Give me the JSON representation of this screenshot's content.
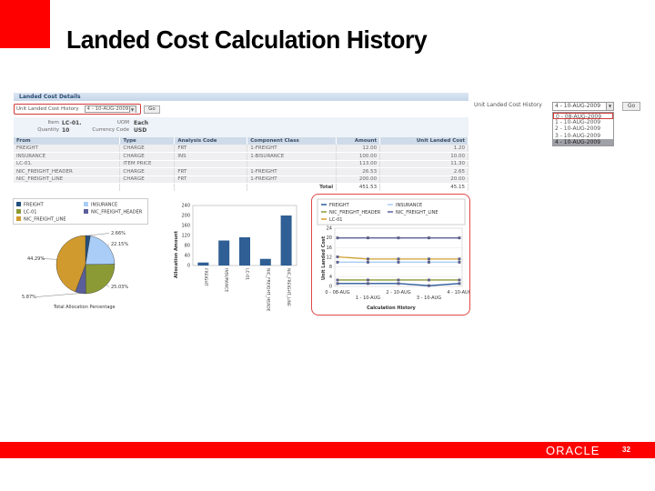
{
  "slide": {
    "title": "Landed Cost Calculation History",
    "brand": "ORACLE",
    "page_number": "32",
    "accent_color": "#ff0000"
  },
  "panel": {
    "header": "Landed Cost Details",
    "history_label": "Unit Landed Cost History",
    "history_value": "4 - 10-AUG-2009",
    "go_label": "Go",
    "item_label": "Item",
    "item_value": "LC-01.",
    "quantity_label": "Quantity",
    "quantity_value": "10",
    "uom_label": "UOM",
    "uom_value": "Each",
    "currency_label": "Currency Code",
    "currency_value": "USD"
  },
  "table": {
    "columns": [
      "From",
      "Type",
      "Analysis Code",
      "Component Class",
      "Amount",
      "Unit Landed Cost"
    ],
    "rows": [
      [
        "FREIGHT",
        "CHARGE",
        "FRT",
        "1-FREIGHT",
        "12.00",
        "1.20"
      ],
      [
        "INSURANCE",
        "CHARGE",
        "INS",
        "1-BISURANCE",
        "100.00",
        "10.00"
      ],
      [
        "LC-01.",
        "ITEM PRICE",
        "",
        "",
        "113.00",
        "11.30"
      ],
      [
        "NIC_FREIGHT_HEADER",
        "CHARGE",
        "FRT",
        "1-FREIGHT",
        "26.53",
        "2.65"
      ],
      [
        "NIC_FREIGHT_LINE",
        "CHARGE",
        "FRT",
        "1-FREIGHT",
        "200.00",
        "20.00"
      ]
    ],
    "total_label": "Total",
    "total_amount": "451.53",
    "total_unit": "45.15"
  },
  "dropdown": {
    "label": "Unit Landed Cost History",
    "value": "4 - 10-AUG-2009",
    "go_label": "Go",
    "options": [
      "0 - 08-AUG-2009",
      "1 - 10-AUG-2009",
      "2 - 10-AUG-2009",
      "3 - 10-AUG-2009",
      "4 - 10-AUG-2009"
    ]
  },
  "chart_data": [
    {
      "type": "pie",
      "title": "Total Allocation Percentage",
      "categories": [
        "FREIGHT",
        "INSURANCE",
        "LC-01",
        "NIC_FREIGHT_HEADER",
        "NIC_FREIGHT_LINE"
      ],
      "values": [
        2.66,
        22.15,
        25.03,
        5.87,
        44.29
      ],
      "labels": [
        "2.66%",
        "22.15%",
        "25.03%",
        "5.87%",
        "44.29%"
      ],
      "colors": [
        "#24507f",
        "#a9cdf7",
        "#8c9a36",
        "#5a5e9a",
        "#d09a2e"
      ],
      "legend_position": "top"
    },
    {
      "type": "bar",
      "title": "",
      "categories": [
        "FREIGHT",
        "INSURANCE",
        "LC-01",
        "NIC_FREIGHT_HEADER",
        "NIC_FREIGHT_LINE"
      ],
      "values": [
        12,
        100,
        113,
        26.53,
        200
      ],
      "xlabel": "",
      "ylabel": "Allocation Amount",
      "ylim": [
        0,
        240
      ],
      "yticks": [
        0,
        40,
        80,
        120,
        160,
        200,
        240
      ],
      "color": "#2f5f94"
    },
    {
      "type": "line",
      "title": "",
      "xlabel": "Calculation History",
      "ylabel": "Unit Landed Cost",
      "categories": [
        "0 - 08-AUG",
        "1 - 10-AUG",
        "2 - 10-AUG",
        "3 - 10-AUG",
        "4 - 10-AUG"
      ],
      "ylim": [
        0,
        24
      ],
      "yticks": [
        0,
        4,
        8,
        12,
        16,
        20,
        24
      ],
      "legend_position": "top",
      "series": [
        {
          "name": "FREIGHT",
          "color": "#2a5a9a",
          "values": [
            1.2,
            1.2,
            1.2,
            0.3,
            1.2
          ]
        },
        {
          "name": "INSURANCE",
          "color": "#a9cdf7",
          "values": [
            10,
            10,
            10,
            10,
            10
          ]
        },
        {
          "name": "NIC_FREIGHT_HEADER",
          "color": "#8c9a36",
          "values": [
            2.65,
            2.65,
            2.65,
            2.65,
            2.65
          ]
        },
        {
          "name": "NIC_FREIGHT_LINE",
          "color": "#5a5e9a",
          "values": [
            20,
            20,
            20,
            20,
            20
          ]
        },
        {
          "name": "LC-01",
          "color": "#d0a02e",
          "values": [
            12.2,
            11.3,
            11.3,
            11.3,
            11.3
          ]
        }
      ]
    }
  ]
}
